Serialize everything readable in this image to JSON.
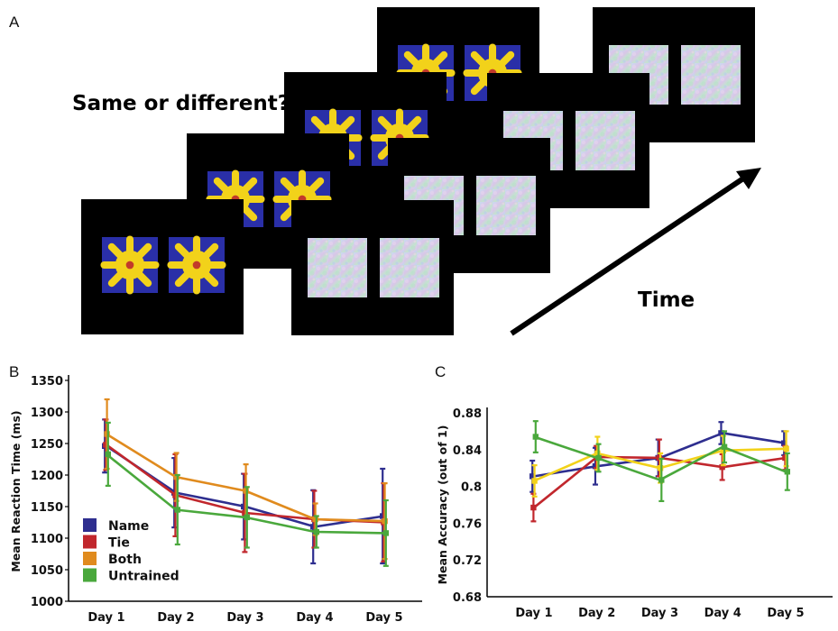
{
  "panels": {
    "a": "A",
    "b": "B",
    "c": "C"
  },
  "schematic": {
    "question": "Same or different?",
    "time_label": "Time"
  },
  "colors": {
    "knot_bg": "#2a2fa8",
    "knot_rope": "#f2d21a",
    "mask_a": "#b9d0ec",
    "mask_b": "#d9c3e6",
    "mask_c": "#c8e6c4",
    "frame": "#000000"
  },
  "chart_data": [
    {
      "type": "line",
      "title": "",
      "xlabel": "",
      "ylabel": "Mean Reaction Time (ms)",
      "categories": [
        "Day 1",
        "Day 2",
        "Day 3",
        "Day 4",
        "Day 5"
      ],
      "ylim": [
        1000,
        1350
      ],
      "yticks": [
        1000,
        1050,
        1100,
        1150,
        1200,
        1250,
        1300,
        1350
      ],
      "legend_position": "bottom-left",
      "grid": false,
      "series": [
        {
          "name": "Name",
          "color": "#2e2e8f",
          "values": [
            1246,
            1172,
            1150,
            1118,
            1135
          ],
          "error": [
            42,
            55,
            52,
            58,
            75
          ]
        },
        {
          "name": "Tie",
          "color": "#c1272d",
          "values": [
            1248,
            1168,
            1140,
            1130,
            1125
          ],
          "error": [
            40,
            65,
            62,
            45,
            62
          ]
        },
        {
          "name": "Both",
          "color": "#e08b1e",
          "values": [
            1265,
            1197,
            1175,
            1130,
            1127
          ],
          "error": [
            55,
            38,
            42,
            25,
            60
          ]
        },
        {
          "name": "Untrained",
          "color": "#4aa83c",
          "values": [
            1233,
            1145,
            1133,
            1110,
            1108
          ],
          "error": [
            50,
            55,
            48,
            25,
            52
          ]
        }
      ]
    },
    {
      "type": "line",
      "title": "",
      "xlabel": "",
      "ylabel": "Mean Accuracy (out of 1)",
      "categories": [
        "Day 1",
        "Day 2",
        "Day 3",
        "Day 4",
        "Day 5"
      ],
      "ylim": [
        0.68,
        0.88
      ],
      "yticks": [
        0.68,
        0.72,
        0.76,
        0.8,
        0.84,
        0.88
      ],
      "ytick_labels": [
        "0.68",
        "0.72",
        "0.76",
        "0.8",
        "0.84",
        "0.88"
      ],
      "grid": false,
      "series": [
        {
          "color": "#2e2e8f",
          "values": [
            0.811,
            0.822,
            0.831,
            0.858,
            0.847
          ],
          "error": [
            0.017,
            0.02,
            0.02,
            0.012,
            0.013
          ]
        },
        {
          "color": "#c1272d",
          "values": [
            0.777,
            0.832,
            0.831,
            0.821,
            0.831
          ],
          "error": [
            0.015,
            0.012,
            0.02,
            0.014,
            0.013
          ]
        },
        {
          "color": "#f2d21a",
          "values": [
            0.806,
            0.836,
            0.82,
            0.839,
            0.841
          ],
          "error": [
            0.017,
            0.018,
            0.016,
            0.016,
            0.019
          ]
        },
        {
          "color": "#4aa83c",
          "values": [
            0.854,
            0.831,
            0.807,
            0.843,
            0.816
          ],
          "error": [
            0.017,
            0.015,
            0.023,
            0.017,
            0.02
          ]
        }
      ]
    }
  ]
}
